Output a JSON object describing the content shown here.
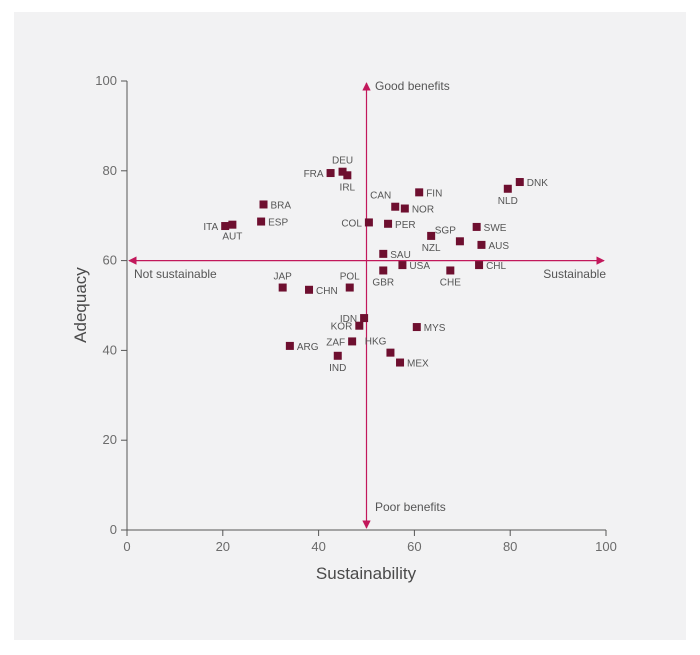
{
  "chart_data": {
    "type": "scatter",
    "xlabel": "Sustainability",
    "ylabel": "Adequacy",
    "xlim": [
      0,
      100
    ],
    "ylim": [
      0,
      100
    ],
    "x_ticks": [
      "0",
      "20",
      "40",
      "60",
      "80",
      "100"
    ],
    "y_ticks": [
      "0",
      "20",
      "40",
      "60",
      "80",
      "100"
    ],
    "grid": false,
    "marker_color": "#6e0f2f",
    "arrow_color": "#c2185b",
    "crosshair": {
      "x": 50,
      "y": 60
    },
    "annotations": {
      "top": "Good benefits",
      "bottom": "Poor benefits",
      "left": "Not sustainable",
      "right": "Sustainable"
    },
    "points": [
      {
        "label": "DNK",
        "x": 82.0,
        "y": 77.5,
        "pos": "right"
      },
      {
        "label": "NLD",
        "x": 79.5,
        "y": 76.0,
        "pos": "below"
      },
      {
        "label": "FIN",
        "x": 61.0,
        "y": 75.2,
        "pos": "right"
      },
      {
        "label": "CAN",
        "x": 56.0,
        "y": 72.0,
        "pos": "above-left"
      },
      {
        "label": "NOR",
        "x": 58.0,
        "y": 71.6,
        "pos": "right"
      },
      {
        "label": "FRA",
        "x": 42.5,
        "y": 79.5,
        "pos": "left"
      },
      {
        "label": "DEU",
        "x": 45.0,
        "y": 79.8,
        "pos": "above"
      },
      {
        "label": "IRL",
        "x": 46.0,
        "y": 79.0,
        "pos": "below"
      },
      {
        "label": "BRA",
        "x": 28.5,
        "y": 72.5,
        "pos": "right"
      },
      {
        "label": "ESP",
        "x": 28.0,
        "y": 68.7,
        "pos": "right"
      },
      {
        "label": "ITA",
        "x": 20.5,
        "y": 67.7,
        "pos": "left"
      },
      {
        "label": "AUT",
        "x": 22.0,
        "y": 68.0,
        "pos": "below"
      },
      {
        "label": "COL",
        "x": 50.5,
        "y": 68.5,
        "pos": "left"
      },
      {
        "label": "PER",
        "x": 54.5,
        "y": 68.2,
        "pos": "right"
      },
      {
        "label": "SGP",
        "x": 69.5,
        "y": 64.3,
        "pos": "above-left"
      },
      {
        "label": "SWE",
        "x": 73.0,
        "y": 67.5,
        "pos": "right"
      },
      {
        "label": "NZL",
        "x": 63.5,
        "y": 65.5,
        "pos": "below"
      },
      {
        "label": "AUS",
        "x": 74.0,
        "y": 63.5,
        "pos": "right"
      },
      {
        "label": "SAU",
        "x": 53.5,
        "y": 61.5,
        "pos": "right"
      },
      {
        "label": "USA",
        "x": 57.5,
        "y": 59.0,
        "pos": "right"
      },
      {
        "label": "GBR",
        "x": 53.5,
        "y": 57.8,
        "pos": "below"
      },
      {
        "label": "CHE",
        "x": 67.5,
        "y": 57.8,
        "pos": "below"
      },
      {
        "label": "CHL",
        "x": 73.5,
        "y": 59.0,
        "pos": "right"
      },
      {
        "label": "JAP",
        "x": 32.5,
        "y": 54.0,
        "pos": "above"
      },
      {
        "label": "CHN",
        "x": 38.0,
        "y": 53.5,
        "pos": "right"
      },
      {
        "label": "POL",
        "x": 46.5,
        "y": 54.0,
        "pos": "above"
      },
      {
        "label": "IDN",
        "x": 49.5,
        "y": 47.2,
        "pos": "left"
      },
      {
        "label": "KOR",
        "x": 48.5,
        "y": 45.5,
        "pos": "left"
      },
      {
        "label": "MYS",
        "x": 60.5,
        "y": 45.2,
        "pos": "right"
      },
      {
        "label": "ZAF",
        "x": 47.0,
        "y": 42.0,
        "pos": "left"
      },
      {
        "label": "ARG",
        "x": 34.0,
        "y": 41.0,
        "pos": "right"
      },
      {
        "label": "HKG",
        "x": 55.0,
        "y": 39.5,
        "pos": "above-left"
      },
      {
        "label": "IND",
        "x": 44.0,
        "y": 38.8,
        "pos": "below"
      },
      {
        "label": "MEX",
        "x": 57.0,
        "y": 37.3,
        "pos": "right"
      }
    ]
  }
}
